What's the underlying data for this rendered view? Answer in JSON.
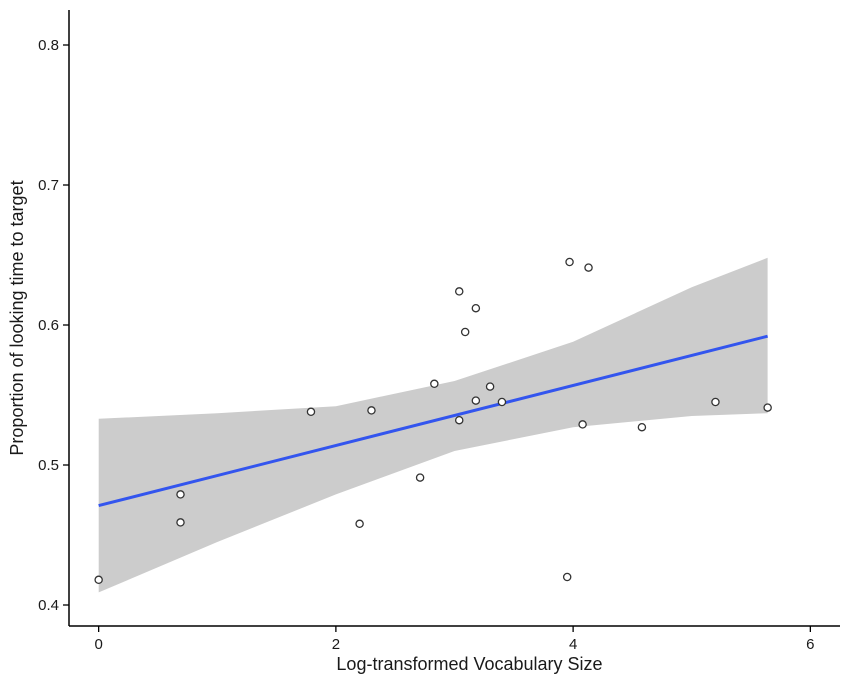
{
  "chart_data": {
    "type": "scatter",
    "title": "",
    "xlabel": "Log-transformed Vocabulary Size",
    "ylabel": "Proportion of looking time to target",
    "xlim": [
      -0.25,
      6.25
    ],
    "ylim": [
      0.385,
      0.825
    ],
    "x_ticks": [
      0,
      2,
      4,
      6
    ],
    "x_tick_labels": [
      "0",
      "2",
      "4",
      "6"
    ],
    "y_ticks": [
      0.4,
      0.5,
      0.6,
      0.7,
      0.8
    ],
    "y_tick_labels": [
      "0.4",
      "0.5",
      "0.6",
      "0.7",
      "0.8"
    ],
    "grid": false,
    "legend": "none",
    "series": [
      {
        "type": "scatter",
        "marker": "open-circle",
        "color": "#333333",
        "points": [
          {
            "x": 0.0,
            "y": 0.418
          },
          {
            "x": 0.69,
            "y": 0.479
          },
          {
            "x": 0.69,
            "y": 0.459
          },
          {
            "x": 1.79,
            "y": 0.538
          },
          {
            "x": 2.2,
            "y": 0.458
          },
          {
            "x": 2.3,
            "y": 0.539
          },
          {
            "x": 2.71,
            "y": 0.491
          },
          {
            "x": 2.83,
            "y": 0.558
          },
          {
            "x": 3.04,
            "y": 0.532
          },
          {
            "x": 3.04,
            "y": 0.624
          },
          {
            "x": 3.09,
            "y": 0.595
          },
          {
            "x": 3.18,
            "y": 0.612
          },
          {
            "x": 3.18,
            "y": 0.546
          },
          {
            "x": 3.3,
            "y": 0.556
          },
          {
            "x": 3.4,
            "y": 0.545
          },
          {
            "x": 3.95,
            "y": 0.42
          },
          {
            "x": 3.97,
            "y": 0.645
          },
          {
            "x": 4.08,
            "y": 0.529
          },
          {
            "x": 4.13,
            "y": 0.641
          },
          {
            "x": 4.58,
            "y": 0.527
          },
          {
            "x": 5.2,
            "y": 0.545
          },
          {
            "x": 5.64,
            "y": 0.541
          }
        ]
      },
      {
        "type": "line",
        "color": "#3355ee",
        "fit": "linear",
        "x": [
          0.0,
          5.64
        ],
        "y": [
          0.471,
          0.592
        ]
      },
      {
        "type": "area",
        "color": "#cccccc",
        "band": "confidence",
        "x": [
          0.0,
          1.0,
          2.0,
          3.0,
          4.0,
          5.0,
          5.64
        ],
        "lower": [
          0.409,
          0.445,
          0.479,
          0.51,
          0.527,
          0.535,
          0.537
        ],
        "upper": [
          0.533,
          0.537,
          0.542,
          0.56,
          0.588,
          0.627,
          0.648
        ]
      }
    ]
  }
}
